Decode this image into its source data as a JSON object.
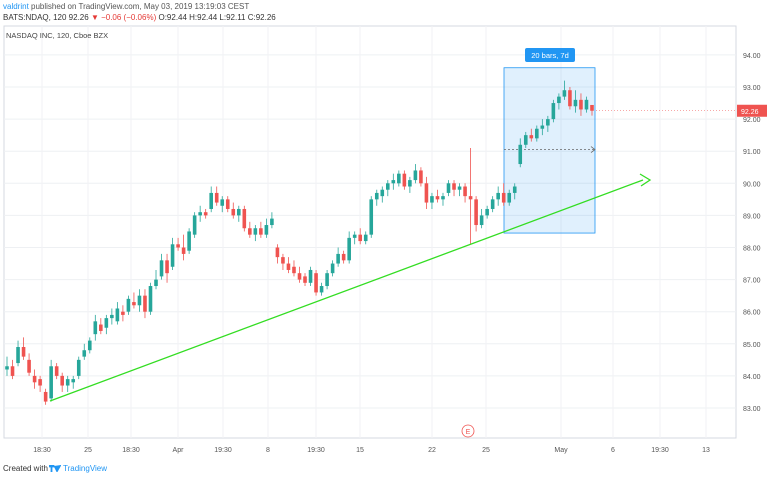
{
  "header": {
    "author": "valdrint",
    "published_text": "published on TradingView.com, May 03, 2019 13:19:03 CEST",
    "ticker": "BATS:NDAQ, 120",
    "last": "92.26",
    "change": "▼ −0.06 (−0.06%)",
    "ohlc": "O:92.44 H:92.44 L:92.11 C:92.26"
  },
  "chart_title": "NASDAQ INC, 120, Cboe BZX",
  "footer": {
    "created_with": "Created with",
    "brand": "TradingView"
  },
  "colors": {
    "up": "#26a69a",
    "down": "#ef5350",
    "trend": "#33dd22",
    "measure": "#2196f3"
  },
  "chart_data": {
    "type": "candlestick",
    "price_ticks": [
      "83.00",
      "84.00",
      "85.00",
      "86.00",
      "87.00",
      "88.00",
      "89.00",
      "90.00",
      "91.00",
      "92.00",
      "93.00",
      "94.00"
    ],
    "time_labels": [
      "18:30",
      "25",
      "18:30",
      "Apr",
      "19:30",
      "8",
      "19:30",
      "15",
      "22",
      "25",
      "May",
      "6",
      "19:30",
      "13"
    ],
    "last_price_label": "92.26",
    "measure_label": "20 bars, 7d",
    "event_marker": "E",
    "ylim": [
      82.4,
      94.8
    ],
    "candles": [
      [
        84.2,
        84.6,
        84.0,
        84.3
      ],
      [
        84.3,
        84.5,
        83.9,
        84.0
      ],
      [
        84.4,
        85.1,
        84.3,
        84.9
      ],
      [
        84.9,
        85.2,
        84.5,
        84.6
      ],
      [
        84.5,
        84.7,
        84.0,
        84.1
      ],
      [
        84.0,
        84.2,
        83.6,
        83.8
      ],
      [
        83.9,
        84.0,
        83.5,
        83.7
      ],
      [
        83.5,
        83.6,
        83.1,
        83.2
      ],
      [
        83.3,
        84.5,
        83.2,
        84.3
      ],
      [
        84.3,
        84.4,
        83.9,
        84.0
      ],
      [
        84.0,
        84.1,
        83.5,
        83.7
      ],
      [
        83.7,
        84.0,
        83.5,
        83.9
      ],
      [
        83.8,
        84.0,
        83.6,
        83.9
      ],
      [
        84.0,
        84.6,
        83.9,
        84.5
      ],
      [
        84.6,
        85.0,
        84.5,
        84.8
      ],
      [
        84.8,
        85.2,
        84.7,
        85.1
      ],
      [
        85.3,
        85.9,
        85.1,
        85.7
      ],
      [
        85.6,
        85.8,
        85.3,
        85.4
      ],
      [
        85.5,
        85.9,
        85.3,
        85.8
      ],
      [
        85.8,
        86.1,
        85.6,
        85.9
      ],
      [
        85.7,
        86.3,
        85.6,
        86.1
      ],
      [
        86.0,
        86.2,
        85.7,
        85.9
      ],
      [
        86.0,
        86.5,
        85.9,
        86.4
      ],
      [
        86.3,
        86.6,
        86.1,
        86.2
      ],
      [
        86.2,
        86.7,
        86.0,
        86.5
      ],
      [
        86.5,
        86.7,
        85.8,
        86.0
      ],
      [
        86.0,
        86.9,
        85.9,
        86.8
      ],
      [
        86.8,
        87.3,
        86.7,
        87.0
      ],
      [
        87.1,
        87.8,
        87.0,
        87.6
      ],
      [
        87.6,
        87.8,
        86.9,
        87.2
      ],
      [
        87.4,
        88.3,
        87.3,
        88.1
      ],
      [
        88.1,
        88.3,
        87.9,
        88.0
      ],
      [
        88.0,
        88.4,
        87.6,
        87.8
      ],
      [
        87.9,
        88.6,
        87.8,
        88.5
      ],
      [
        88.4,
        89.1,
        88.3,
        89.0
      ],
      [
        89.0,
        89.3,
        88.8,
        89.1
      ],
      [
        89.1,
        89.2,
        88.9,
        89.0
      ],
      [
        89.2,
        89.9,
        89.1,
        89.7
      ],
      [
        89.7,
        89.9,
        89.3,
        89.4
      ],
      [
        89.3,
        89.6,
        89.1,
        89.5
      ],
      [
        89.5,
        89.6,
        89.1,
        89.2
      ],
      [
        89.2,
        89.4,
        88.9,
        89.0
      ],
      [
        89.0,
        89.3,
        88.8,
        89.2
      ],
      [
        89.2,
        89.3,
        88.5,
        88.6
      ],
      [
        88.6,
        88.8,
        88.3,
        88.4
      ],
      [
        88.4,
        88.7,
        88.2,
        88.6
      ],
      [
        88.6,
        88.8,
        88.3,
        88.4
      ],
      [
        88.4,
        88.9,
        88.3,
        88.7
      ],
      [
        88.7,
        89.1,
        88.6,
        88.9
      ],
      [
        88.0,
        88.1,
        87.5,
        87.7
      ],
      [
        87.7,
        87.8,
        87.3,
        87.5
      ],
      [
        87.5,
        87.7,
        87.2,
        87.3
      ],
      [
        87.4,
        87.6,
        87.1,
        87.2
      ],
      [
        87.2,
        87.4,
        86.9,
        87.0
      ],
      [
        87.1,
        87.2,
        86.8,
        86.9
      ],
      [
        86.9,
        87.4,
        86.8,
        87.3
      ],
      [
        87.2,
        87.3,
        86.5,
        86.6
      ],
      [
        86.6,
        86.9,
        86.5,
        86.8
      ],
      [
        86.8,
        87.3,
        86.7,
        87.2
      ],
      [
        87.2,
        87.6,
        87.1,
        87.5
      ],
      [
        87.5,
        88.0,
        87.4,
        87.8
      ],
      [
        87.8,
        87.9,
        87.5,
        87.6
      ],
      [
        87.6,
        88.5,
        87.5,
        88.3
      ],
      [
        88.3,
        88.5,
        88.1,
        88.4
      ],
      [
        88.4,
        88.6,
        88.1,
        88.2
      ],
      [
        88.2,
        88.5,
        88.1,
        88.4
      ],
      [
        88.4,
        89.6,
        88.3,
        89.5
      ],
      [
        89.5,
        89.8,
        89.3,
        89.7
      ],
      [
        89.6,
        89.9,
        89.4,
        89.8
      ],
      [
        89.8,
        90.1,
        89.6,
        90.0
      ],
      [
        90.0,
        90.3,
        89.8,
        90.1
      ],
      [
        90.0,
        90.4,
        89.9,
        90.3
      ],
      [
        90.3,
        90.4,
        89.8,
        89.9
      ],
      [
        89.9,
        90.2,
        89.7,
        90.1
      ],
      [
        90.1,
        90.6,
        90.0,
        90.4
      ],
      [
        90.4,
        90.5,
        89.9,
        90.0
      ],
      [
        90.0,
        90.2,
        89.2,
        89.4
      ],
      [
        89.4,
        89.7,
        89.2,
        89.6
      ],
      [
        89.6,
        89.8,
        89.4,
        89.5
      ],
      [
        89.5,
        89.7,
        89.3,
        89.6
      ],
      [
        89.7,
        90.1,
        89.6,
        90.0
      ],
      [
        90.0,
        90.1,
        89.6,
        89.8
      ],
      [
        89.8,
        90.0,
        89.6,
        89.9
      ],
      [
        89.9,
        90.0,
        89.4,
        89.6
      ],
      [
        89.6,
        91.1,
        88.1,
        89.5
      ],
      [
        89.5,
        89.6,
        88.5,
        88.7
      ],
      [
        88.7,
        89.2,
        88.6,
        89.0
      ],
      [
        89.0,
        89.3,
        88.9,
        89.2
      ],
      [
        89.2,
        89.6,
        89.1,
        89.5
      ],
      [
        89.5,
        89.9,
        89.3,
        89.7
      ],
      [
        89.7,
        90.0,
        89.3,
        89.4
      ],
      [
        89.4,
        89.8,
        89.3,
        89.7
      ],
      [
        89.7,
        90.0,
        89.5,
        89.9
      ],
      [
        90.6,
        91.4,
        90.5,
        91.2
      ],
      [
        91.2,
        91.6,
        91.1,
        91.5
      ],
      [
        91.5,
        91.7,
        91.3,
        91.4
      ],
      [
        91.4,
        91.8,
        91.3,
        91.7
      ],
      [
        91.7,
        92.0,
        91.5,
        91.8
      ],
      [
        91.8,
        92.1,
        91.6,
        92.0
      ],
      [
        92.0,
        92.6,
        91.9,
        92.5
      ],
      [
        92.5,
        92.8,
        92.3,
        92.7
      ],
      [
        92.7,
        93.2,
        92.6,
        92.9
      ],
      [
        92.9,
        93.0,
        92.3,
        92.4
      ],
      [
        92.4,
        92.9,
        92.2,
        92.6
      ],
      [
        92.6,
        92.8,
        92.1,
        92.3
      ],
      [
        92.3,
        92.7,
        92.2,
        92.6
      ],
      [
        92.44,
        92.44,
        92.11,
        92.26
      ]
    ]
  }
}
